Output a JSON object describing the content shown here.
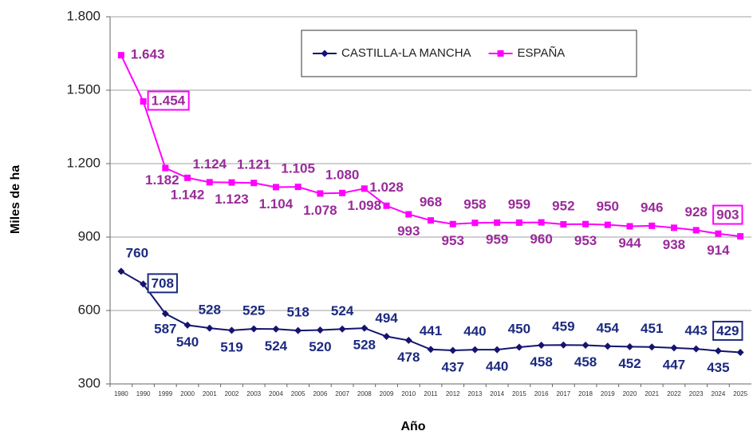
{
  "chart_data": {
    "type": "line",
    "x_label": "Año",
    "y_label": "Miles de ha",
    "categories": [
      "1980",
      "1990",
      "1999",
      "2000",
      "2001",
      "2002",
      "2003",
      "2004",
      "2005",
      "2006",
      "2007",
      "2008",
      "2009",
      "2010",
      "2011",
      "2012",
      "2013",
      "2014",
      "2015",
      "2016",
      "2017",
      "2018",
      "2019",
      "2020",
      "2021",
      "2022",
      "2023",
      "2024",
      "2025"
    ],
    "series": [
      {
        "name": "CASTILLA-LA MANCHA",
        "color": "#141470",
        "label_color": "#1c2a80",
        "marker": "diamond",
        "boxed_labels": [
          1,
          28
        ],
        "values": [
          760,
          708,
          587,
          540,
          528,
          519,
          525,
          524,
          518,
          520,
          524,
          528,
          494,
          478,
          441,
          437,
          440,
          440,
          450,
          458,
          459,
          458,
          454,
          452,
          451,
          447,
          443,
          435,
          429
        ]
      },
      {
        "name": "ESPAÑA",
        "color": "#ff00ff",
        "label_color": "#992b99",
        "marker": "square",
        "boxed_labels": [
          1,
          28
        ],
        "values": [
          1643,
          1454,
          1182,
          1142,
          1124,
          1123,
          1121,
          1104,
          1105,
          1078,
          1080,
          1098,
          1028,
          993,
          968,
          953,
          958,
          959,
          959,
          960,
          952,
          953,
          950,
          944,
          946,
          938,
          928,
          914,
          903
        ],
        "value_labels": [
          "1.643",
          "1.454",
          "1.182",
          "1.142",
          "1.124",
          "1.123",
          "1.121",
          "1.104",
          "1.105",
          "1.078",
          "1.080",
          "1.098",
          "1.028",
          "993",
          "968",
          "953",
          "958",
          "959",
          "959",
          "960",
          "952",
          "953",
          "950",
          "944",
          "946",
          "938",
          "928",
          "914",
          "903"
        ]
      }
    ],
    "ylim": [
      300,
      1800
    ],
    "yticks": [
      300,
      600,
      900,
      {
        "value": 1200,
        "label": "1.200"
      },
      {
        "value": 1500,
        "label": "1.500"
      },
      {
        "value": 1800,
        "label": "1.800"
      }
    ],
    "grid": true,
    "legend": "top"
  }
}
